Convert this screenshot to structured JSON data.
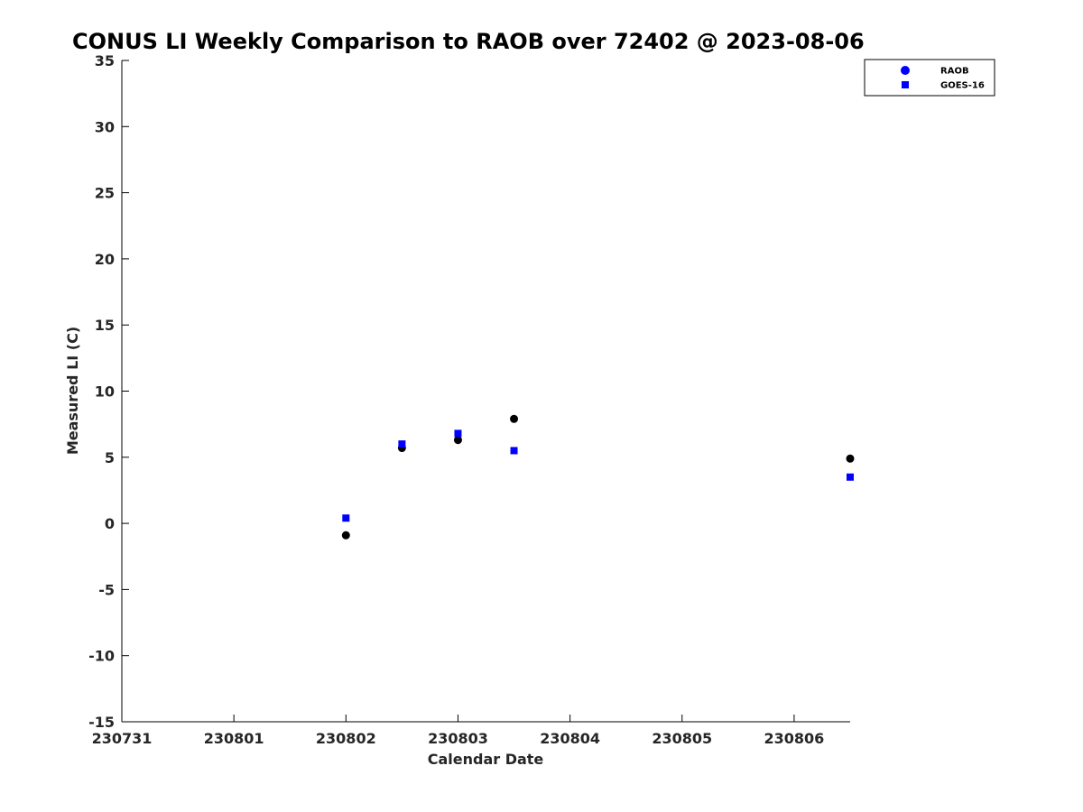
{
  "chart_data": {
    "type": "scatter",
    "title": "CONUS LI Weekly Comparison to RAOB over 72402 @ 2023-08-06",
    "xlabel": "Calendar Date",
    "ylabel": "Measured LI (C)",
    "x_tick_labels": [
      "230731",
      "230801",
      "230802",
      "230803",
      "230804",
      "230805",
      "230806"
    ],
    "y_ticks": [
      35,
      30,
      25,
      20,
      15,
      10,
      5,
      0,
      -5,
      -10,
      -15
    ],
    "xlim": [
      "2023-07-31 00:00",
      "2023-08-06 12:00"
    ],
    "ylim": [
      -15,
      35
    ],
    "grid": false,
    "legend_position": "top-right",
    "series": [
      {
        "name": "RAOB",
        "marker": "circle",
        "color": "#000000",
        "legend_color": "#0000ff",
        "points": [
          {
            "x": "2023-08-02 00:00",
            "y": -0.9
          },
          {
            "x": "2023-08-02 12:00",
            "y": 5.7
          },
          {
            "x": "2023-08-03 00:00",
            "y": 6.3
          },
          {
            "x": "2023-08-03 12:00",
            "y": 7.9
          },
          {
            "x": "2023-08-06 12:00",
            "y": 4.9
          }
        ]
      },
      {
        "name": "GOES-16",
        "marker": "square",
        "color": "#0000ff",
        "legend_color": "#0000ff",
        "points": [
          {
            "x": "2023-08-02 00:00",
            "y": 0.4
          },
          {
            "x": "2023-08-02 12:00",
            "y": 6.0
          },
          {
            "x": "2023-08-03 00:00",
            "y": 6.8
          },
          {
            "x": "2023-08-03 12:00",
            "y": 5.5
          },
          {
            "x": "2023-08-06 12:00",
            "y": 3.5
          }
        ]
      }
    ]
  }
}
